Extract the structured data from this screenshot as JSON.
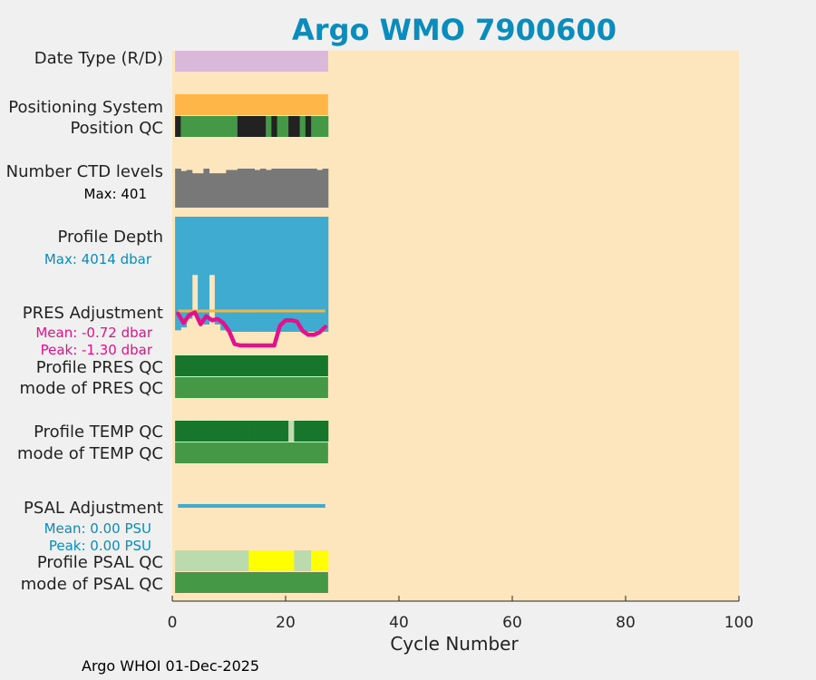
{
  "chart_data": {
    "type": "bar",
    "title": "Argo WMO 7900600",
    "xlabel": "Cycle Number",
    "xlim": [
      0,
      100
    ],
    "xticks": [
      0,
      20,
      40,
      60,
      80,
      100
    ],
    "xtick_labels": [
      "0",
      "20",
      "40",
      "60",
      "80",
      "100"
    ],
    "row_labels": {
      "date_type": "Date Type (R/D)",
      "positioning_system": "Positioning System",
      "position_qc": "Position QC",
      "number_ctd_levels": "Number CTD levels",
      "profile_depth": "Profile Depth",
      "pres_adjustment": "PRES Adjustment",
      "profile_pres_qc": "Profile PRES QC",
      "mode_pres_qc": "mode of PRES QC",
      "profile_temp_qc": "Profile TEMP QC",
      "mode_temp_qc": "mode of TEMP QC",
      "psal_adjustment": "PSAL Adjustment",
      "profile_psal_qc": "Profile PSAL QC",
      "mode_psal_qc": "mode of PSAL QC"
    },
    "annotations": {
      "ctd_max": "Max: 401",
      "depth_max": "Max: 4014 dbar",
      "pres_mean": "Mean: -0.72 dbar",
      "pres_peak": "Peak: -1.30 dbar",
      "psal_mean": "Mean: 0.00 PSU",
      "psal_peak": "Peak: 0.00 PSU"
    },
    "cycles": [
      1,
      2,
      3,
      4,
      5,
      6,
      7,
      8,
      9,
      10,
      11,
      12,
      13,
      14,
      15,
      16,
      17,
      18,
      19,
      20,
      21,
      22,
      23,
      24,
      25,
      26,
      27
    ],
    "number_ctd_levels": [
      401,
      390,
      395,
      380,
      380,
      401,
      380,
      380,
      380,
      395,
      395,
      401,
      401,
      401,
      395,
      401,
      395,
      401,
      401,
      401,
      401,
      401,
      401,
      401,
      401,
      395,
      401
    ],
    "profile_depth_max_dbar": 4014,
    "profile_depth_bottom": [
      3900,
      3800,
      3500,
      2000,
      3550,
      3700,
      2000,
      3700,
      3900,
      3950,
      3950,
      3950,
      3950,
      3950,
      3950,
      3950,
      3950,
      3950,
      3950,
      3950,
      3950,
      3950,
      3950,
      3950,
      3950,
      3900,
      3950
    ],
    "pres_adjustment_dbar": [
      -0.1,
      -0.45,
      -0.15,
      -0.05,
      -0.5,
      -0.2,
      -0.35,
      -0.3,
      -0.45,
      -0.75,
      -1.25,
      -1.3,
      -1.3,
      -1.3,
      -1.3,
      -1.3,
      -1.3,
      -1.3,
      -0.55,
      -0.35,
      -0.35,
      -0.4,
      -0.75,
      -0.9,
      -0.9,
      -0.8,
      -0.6
    ],
    "psal_adjustment_psu": [
      0,
      0,
      0,
      0,
      0,
      0,
      0,
      0,
      0,
      0,
      0,
      0,
      0,
      0,
      0,
      0,
      0,
      0,
      0,
      0,
      0,
      0,
      0,
      0,
      0,
      0,
      0
    ],
    "position_qc": [
      4,
      1,
      1,
      1,
      1,
      1,
      1,
      1,
      1,
      1,
      1,
      4,
      4,
      4,
      4,
      4,
      1,
      4,
      1,
      1,
      4,
      4,
      1,
      4,
      1,
      1,
      1
    ],
    "profile_temp_qc": [
      "A",
      "A",
      "A",
      "A",
      "A",
      "A",
      "A",
      "A",
      "A",
      "A",
      "A",
      "A",
      "A",
      "A",
      "A",
      "A",
      "A",
      "A",
      "A",
      "A",
      "B",
      "A",
      "A",
      "A",
      "A",
      "A",
      "A"
    ],
    "profile_psal_qc": [
      "C",
      "C",
      "C",
      "C",
      "C",
      "C",
      "C",
      "C",
      "C",
      "C",
      "C",
      "C",
      "C",
      "F",
      "F",
      "F",
      "F",
      "F",
      "F",
      "F",
      "F",
      "C",
      "C",
      "C",
      "F",
      "F",
      "F"
    ],
    "colors": {
      "background": "#fde6bd",
      "date_type": "#d9b8da",
      "positioning_system": "#fdb647",
      "qc_good": "#459845",
      "qc_bad": "#222222",
      "profile_qc_a": "#17762b",
      "temp_qc_b": "#c2dcb0",
      "psal_qc_c": "#bbdbae",
      "psal_qc_f": "#ffff00",
      "ctd_levels": "#787878",
      "profile_depth": "#40abd1",
      "pres_reference": "#efb745",
      "pres_adjustment": "#e4118c",
      "psal_adjustment": "#40abd1",
      "title": "#0a8cbd",
      "annotation_pink": "#e4118c",
      "annotation_blue": "#0a8cbd"
    }
  },
  "footer": "Argo WHOI 01-Dec-2025"
}
